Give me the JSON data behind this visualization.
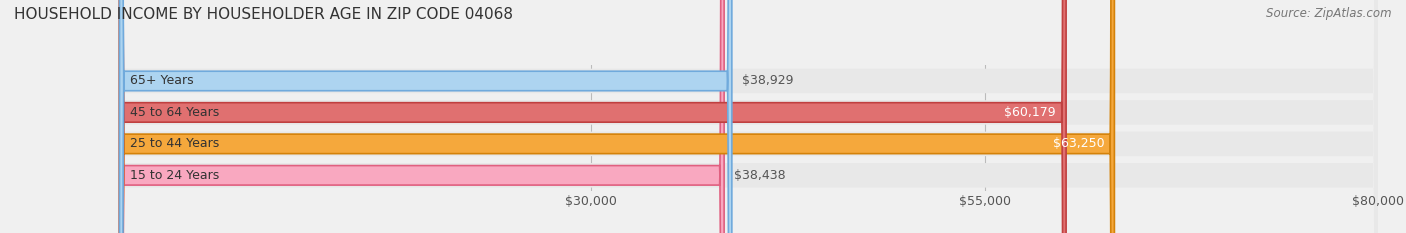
{
  "title": "HOUSEHOLD INCOME BY HOUSEHOLDER AGE IN ZIP CODE 04068",
  "source": "Source: ZipAtlas.com",
  "categories": [
    "15 to 24 Years",
    "25 to 44 Years",
    "45 to 64 Years",
    "65+ Years"
  ],
  "values": [
    38438,
    63250,
    60179,
    38929
  ],
  "bar_colors": [
    "#f9a8c0",
    "#f5a83c",
    "#e07070",
    "#add4f0"
  ],
  "bar_edge_colors": [
    "#e06080",
    "#d4820a",
    "#c04040",
    "#70aadc"
  ],
  "value_labels": [
    "$38,438",
    "$63,250",
    "$60,179",
    "$38,929"
  ],
  "value_colors": [
    "#555555",
    "#ffffff",
    "#ffffff",
    "#555555"
  ],
  "xlim": [
    0,
    80000
  ],
  "xticks": [
    30000,
    55000,
    80000
  ],
  "xticklabels": [
    "$30,000",
    "$55,000",
    "$80,000"
  ],
  "bg_color": "#f0f0f0",
  "bar_bg_color": "#e8e8e8",
  "title_fontsize": 11,
  "source_fontsize": 8.5,
  "label_fontsize": 9,
  "tick_fontsize": 9
}
